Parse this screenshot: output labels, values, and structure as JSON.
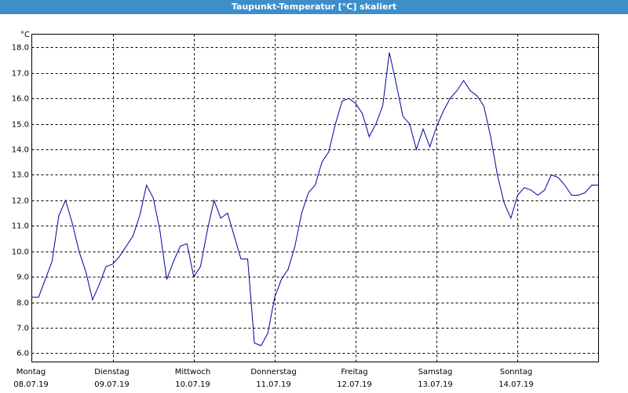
{
  "chart_data": {
    "type": "line",
    "title": "Taupunkt-Temperatur [°C] skaliert",
    "y_unit": "°C",
    "days": [
      {
        "name": "Montag",
        "date": "08.07.19"
      },
      {
        "name": "Dienstag",
        "date": "09.07.19"
      },
      {
        "name": "Mittwoch",
        "date": "10.07.19"
      },
      {
        "name": "Donnerstag",
        "date": "11.07.19"
      },
      {
        "name": "Freitag",
        "date": "12.07.19"
      },
      {
        "name": "Samstag",
        "date": "13.07.19"
      },
      {
        "name": "Sonntag",
        "date": "14.07.19"
      }
    ],
    "series": [
      {
        "color": "#00009c",
        "values": [
          8.2,
          8.2,
          8.9,
          9.6,
          11.4,
          12.0,
          11.1,
          10.0,
          9.2,
          8.1,
          8.7,
          9.4,
          9.5,
          9.8,
          10.2,
          10.6,
          11.4,
          12.6,
          12.1,
          10.8,
          8.9,
          9.6,
          10.2,
          10.3,
          9.0,
          9.4,
          10.8,
          12.0,
          11.3,
          11.5,
          10.6,
          9.7,
          9.7,
          6.4,
          6.3,
          6.8,
          8.2,
          8.9,
          9.3,
          10.2,
          11.5,
          12.3,
          12.6,
          13.5,
          13.9,
          15.0,
          15.9,
          16.0,
          15.8,
          15.4,
          14.5,
          15.0,
          15.7,
          17.8,
          16.6,
          15.3,
          15.0,
          14.0,
          14.8,
          14.1,
          14.9,
          15.5,
          16.0,
          16.3,
          16.7,
          16.3,
          16.1,
          15.7,
          14.5,
          13.0,
          11.9,
          11.3,
          12.2,
          12.5,
          12.4,
          12.2,
          12.4,
          13.0,
          12.9,
          12.6,
          12.2,
          12.2,
          12.3,
          12.6,
          12.6
        ]
      }
    ],
    "ylim": [
      5.66,
      18.52
    ],
    "yticks": [
      {
        "value": 6,
        "label": "6.0"
      },
      {
        "value": 7,
        "label": "7.0"
      },
      {
        "value": 8,
        "label": "8.0"
      },
      {
        "value": 9,
        "label": "9.0"
      },
      {
        "value": 10,
        "label": "10.0"
      },
      {
        "value": 11,
        "label": "11.0"
      },
      {
        "value": 12,
        "label": "12.0"
      },
      {
        "value": 13,
        "label": "13.0"
      },
      {
        "value": 14,
        "label": "14.0"
      },
      {
        "value": 15,
        "label": "15.0"
      },
      {
        "value": 16,
        "label": "16.0"
      },
      {
        "value": 17,
        "label": "17.0"
      },
      {
        "value": 18,
        "label": "18.0"
      }
    ],
    "grid": true
  }
}
